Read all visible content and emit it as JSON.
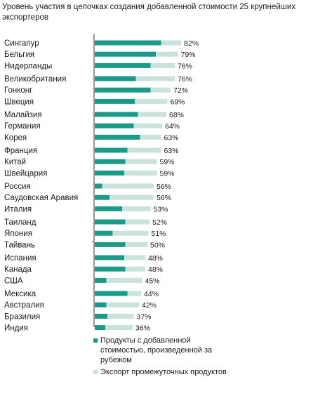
{
  "chart_data": {
    "type": "bar",
    "title": "Уровень участия в цепочках создания добавленной стоимости 25 крупнейших экспортеров",
    "categories": [
      "Сингапур",
      "Бельгия",
      "Нидерланды",
      "Великобритания",
      "Гонконг",
      "Швеция",
      "Малайзия",
      "Германия",
      "Корея",
      "Франция",
      "Китай",
      "Швейцария",
      "Россия",
      "Саудовская Аравия",
      "Италия",
      "Таиланд",
      "Япония",
      "Тайвань",
      "Испания",
      "Канада",
      "США",
      "Мексика",
      "Австралия",
      "Бразилия",
      "Индия"
    ],
    "groups": [
      3,
      3,
      3,
      3,
      3,
      3,
      3,
      4
    ],
    "series": [
      {
        "name": "Продукты с добавленной стоимостью, произведенной за рубежом",
        "color": "#1b9a8a",
        "values": [
          63,
          58,
          53,
          39,
          53,
          38,
          41,
          37,
          43,
          31,
          29,
          28,
          7,
          14,
          26,
          29,
          17,
          29,
          28,
          29,
          11,
          31,
          11,
          12,
          10
        ]
      },
      {
        "name": "Экспорт промежуточных продуктов",
        "color": "#c9e3dc",
        "values": [
          19,
          21,
          23,
          37,
          19,
          31,
          27,
          27,
          20,
          32,
          30,
          31,
          49,
          42,
          27,
          23,
          34,
          21,
          20,
          19,
          34,
          13,
          31,
          25,
          26
        ]
      }
    ],
    "total_labels": [
      "82%",
      "79%",
      "76%",
      "76%",
      "72%",
      "69%",
      "68%",
      "64%",
      "63%",
      "63%",
      "59%",
      "59%",
      "56%",
      "56%",
      "53%",
      "52%",
      "51%",
      "50%",
      "48%",
      "48%",
      "45%",
      "44%",
      "42%",
      "37%",
      "36%"
    ],
    "stacked": true,
    "orientation": "horizontal",
    "legend_position": "bottom"
  }
}
